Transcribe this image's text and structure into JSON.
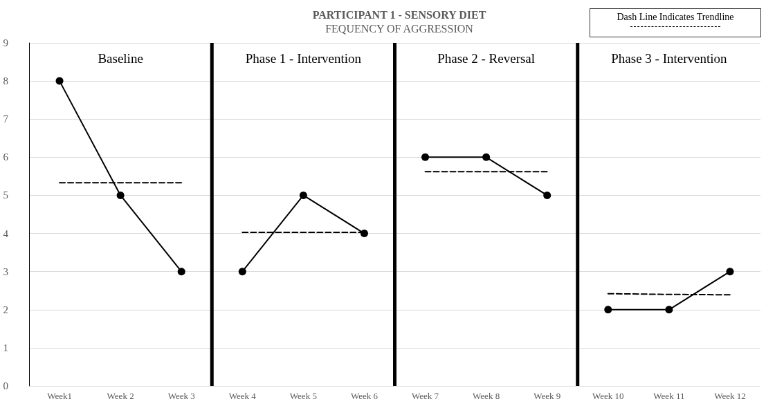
{
  "chart_data": {
    "type": "line",
    "title": "PARTICIPANT 1 - SENSORY DIET",
    "subtitle": "FEQUENCY OF AGGRESSION",
    "categories": [
      "Week1",
      "Week 2",
      "Week 3",
      "Week 4",
      "Week 5",
      "Week 6",
      "Week 7",
      "Week 8",
      "Week 9",
      "Week 10",
      "Week 11",
      "Week 12"
    ],
    "series": [
      {
        "color": "#000000",
        "marker": "circle",
        "line_style": "solid",
        "values": [
          8,
          5,
          3,
          null,
          null,
          null,
          null,
          null,
          null,
          null,
          null,
          null
        ]
      },
      {
        "color": "#000000",
        "marker": "circle",
        "line_style": "solid",
        "values": [
          null,
          null,
          null,
          3,
          5,
          4,
          null,
          null,
          null,
          null,
          null,
          null
        ]
      },
      {
        "color": "#000000",
        "marker": "circle",
        "line_style": "solid",
        "values": [
          null,
          null,
          null,
          null,
          null,
          null,
          6,
          6,
          5,
          null,
          null,
          null
        ]
      },
      {
        "color": "#000000",
        "marker": "circle",
        "line_style": "solid",
        "values": [
          null,
          null,
          null,
          null,
          null,
          null,
          null,
          null,
          null,
          2,
          2,
          3
        ]
      },
      {
        "color": "#000000",
        "marker": "none",
        "line_style": "dashed",
        "values": [
          5.33,
          5.33,
          5.33,
          null,
          null,
          null,
          null,
          null,
          null,
          null,
          null,
          null
        ]
      },
      {
        "color": "#000000",
        "marker": "none",
        "line_style": "dashed",
        "values": [
          null,
          null,
          null,
          4.03,
          4.03,
          4.03,
          null,
          null,
          null,
          null,
          null,
          null
        ]
      },
      {
        "color": "#000000",
        "marker": "none",
        "line_style": "dashed",
        "values": [
          null,
          null,
          null,
          null,
          null,
          null,
          5.62,
          5.62,
          5.62,
          null,
          null,
          null
        ]
      },
      {
        "color": "#000000",
        "marker": "none",
        "line_style": "dashed",
        "values": [
          null,
          null,
          null,
          null,
          null,
          null,
          null,
          null,
          null,
          2.42,
          2.4,
          2.39
        ]
      }
    ],
    "ylim": [
      0,
      9
    ],
    "yticks": [
      0,
      1,
      2,
      3,
      4,
      5,
      6,
      7,
      8,
      9
    ],
    "grid": "y",
    "annotations": [
      "Baseline",
      "Phase 1 - Intervention",
      "Phase 2 - Reversal",
      "Phase 3 - Intervention",
      "Dash Line Indicates Trendline"
    ]
  }
}
